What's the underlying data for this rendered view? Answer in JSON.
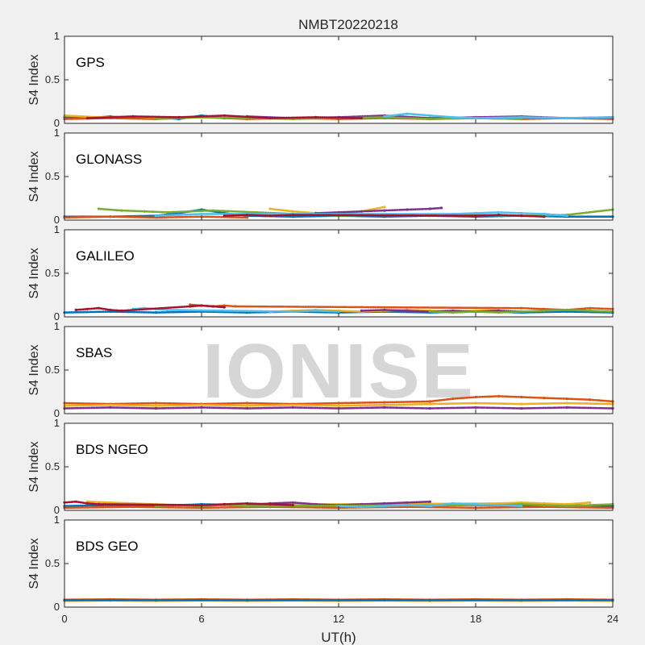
{
  "chart_data": {
    "type": "scatter",
    "title": "NMBT20220218",
    "xlabel": "UT(h)",
    "ylabel": "S4 Index",
    "xlim": [
      0,
      24
    ],
    "ylim": [
      0,
      1
    ],
    "xticks": [
      0,
      6,
      12,
      18,
      24
    ],
    "yticks": [
      0,
      0.5,
      1
    ],
    "x_tick_labels": [
      "0",
      "6",
      "12",
      "18",
      "24"
    ],
    "y_tick_labels": [
      "0",
      "0.5",
      "1"
    ],
    "grid": false,
    "watermark": "IONISE",
    "series_colors": [
      "#0072bd",
      "#d95319",
      "#edb120",
      "#7e2f8e",
      "#77ac30",
      "#4dbeee",
      "#a2142f"
    ],
    "panels": [
      {
        "system": "GPS",
        "segments": [
          {
            "color": "#0072bd",
            "x": [
              0,
              1,
              2,
              3,
              4,
              5,
              6,
              7,
              8
            ],
            "y": [
              0.07,
              0.06,
              0.08,
              0.06,
              0.07,
              0.05,
              0.09,
              0.06,
              0.07
            ]
          },
          {
            "color": "#d95319",
            "x": [
              0,
              2,
              4,
              6,
              8,
              10,
              12,
              14,
              16,
              18,
              20,
              22,
              24
            ],
            "y": [
              0.05,
              0.06,
              0.05,
              0.07,
              0.05,
              0.06,
              0.05,
              0.06,
              0.05,
              0.06,
              0.05,
              0.06,
              0.05
            ]
          },
          {
            "color": "#edb120",
            "x": [
              0,
              1.5,
              3,
              4.5,
              6
            ],
            "y": [
              0.09,
              0.07,
              0.08,
              0.06,
              0.07
            ]
          },
          {
            "color": "#7e2f8e",
            "x": [
              8,
              10,
              12,
              14,
              16,
              18,
              20,
              22,
              24
            ],
            "y": [
              0.08,
              0.06,
              0.07,
              0.09,
              0.06,
              0.07,
              0.08,
              0.06,
              0.07
            ]
          },
          {
            "color": "#77ac30",
            "x": [
              4,
              6,
              8,
              10,
              12,
              14,
              16,
              18,
              20
            ],
            "y": [
              0.05,
              0.07,
              0.06,
              0.05,
              0.06,
              0.07,
              0.05,
              0.06,
              0.05
            ]
          },
          {
            "color": "#4dbeee",
            "x": [
              14,
              15,
              16,
              17,
              18,
              20,
              22,
              24
            ],
            "y": [
              0.08,
              0.11,
              0.09,
              0.07,
              0.06,
              0.07,
              0.06,
              0.07
            ]
          },
          {
            "color": "#a2142f",
            "x": [
              1,
              3,
              5,
              7,
              9,
              11,
              13
            ],
            "y": [
              0.06,
              0.08,
              0.07,
              0.09,
              0.06,
              0.07,
              0.06
            ]
          }
        ]
      },
      {
        "system": "GLONASS",
        "segments": [
          {
            "color": "#0072bd",
            "x": [
              0,
              2,
              4,
              5,
              6,
              7,
              8,
              10,
              12,
              14,
              16,
              18,
              20,
              22,
              24
            ],
            "y": [
              0.04,
              0.04,
              0.05,
              0.08,
              0.12,
              0.08,
              0.05,
              0.04,
              0.05,
              0.04,
              0.05,
              0.04,
              0.05,
              0.04,
              0.04
            ]
          },
          {
            "color": "#d95319",
            "x": [
              0,
              2,
              4,
              6,
              8
            ],
            "y": [
              0.03,
              0.04,
              0.03,
              0.04,
              0.03
            ]
          },
          {
            "color": "#edb120",
            "x": [
              9,
              10,
              11,
              12,
              13,
              14
            ],
            "y": [
              0.13,
              0.1,
              0.08,
              0.06,
              0.1,
              0.15
            ]
          },
          {
            "color": "#7e2f8e",
            "x": [
              11,
              12,
              13,
              14,
              15,
              16,
              16.5
            ],
            "y": [
              0.08,
              0.09,
              0.1,
              0.11,
              0.12,
              0.13,
              0.14
            ]
          },
          {
            "color": "#77ac30",
            "x": [
              1.5,
              2.5,
              3.5,
              4.5,
              5.5,
              6.5,
              12,
              14,
              16,
              18,
              20,
              22,
              24
            ],
            "y": [
              0.13,
              0.11,
              0.1,
              0.09,
              0.1,
              0.11,
              0.05,
              0.06,
              0.05,
              0.06,
              0.05,
              0.06,
              0.12
            ]
          },
          {
            "color": "#4dbeee",
            "x": [
              4,
              5,
              6,
              17,
              18,
              19,
              20,
              21,
              22
            ],
            "y": [
              0.05,
              0.06,
              0.07,
              0.07,
              0.08,
              0.09,
              0.08,
              0.07,
              0.05
            ]
          },
          {
            "color": "#a2142f",
            "x": [
              7,
              8,
              9,
              10,
              18,
              19,
              20,
              21
            ],
            "y": [
              0.05,
              0.06,
              0.05,
              0.06,
              0.05,
              0.06,
              0.05,
              0.04
            ]
          }
        ]
      },
      {
        "system": "GALILEO",
        "segments": [
          {
            "color": "#0072bd",
            "x": [
              0,
              2,
              4,
              6,
              8,
              10,
              12,
              14,
              16,
              18,
              20,
              22,
              24
            ],
            "y": [
              0.05,
              0.06,
              0.05,
              0.06,
              0.05,
              0.06,
              0.05,
              0.06,
              0.05,
              0.06,
              0.05,
              0.06,
              0.05
            ]
          },
          {
            "color": "#d95319",
            "x": [
              5.5,
              6,
              6.5,
              7,
              7.5,
              20,
              21,
              22,
              23,
              24
            ],
            "y": [
              0.14,
              0.13,
              0.12,
              0.13,
              0.12,
              0.1,
              0.09,
              0.08,
              0.1,
              0.09
            ]
          },
          {
            "color": "#edb120",
            "x": [
              9,
              10,
              11,
              12,
              13,
              14,
              15,
              16,
              17,
              18,
              19
            ],
            "y": [
              0.06,
              0.07,
              0.08,
              0.07,
              0.06,
              0.07,
              0.08,
              0.07,
              0.06,
              0.07,
              0.08
            ]
          },
          {
            "color": "#7e2f8e",
            "x": [
              13,
              14,
              15,
              16,
              17,
              18,
              19,
              20
            ],
            "y": [
              0.07,
              0.08,
              0.07,
              0.06,
              0.07,
              0.06,
              0.07,
              0.06
            ]
          },
          {
            "color": "#77ac30",
            "x": [
              16,
              17,
              18,
              19,
              20,
              21,
              22,
              23,
              24
            ],
            "y": [
              0.06,
              0.05,
              0.06,
              0.05,
              0.06,
              0.07,
              0.08,
              0.07,
              0.06
            ]
          },
          {
            "color": "#4dbeee",
            "x": [
              3,
              3.5,
              4,
              4.5,
              10,
              11,
              12
            ],
            "y": [
              0.09,
              0.1,
              0.09,
              0.08,
              0.06,
              0.07,
              0.06
            ]
          },
          {
            "color": "#a2142f",
            "x": [
              0.5,
              1,
              1.5,
              2,
              2.5,
              5.5,
              6,
              6.5,
              7
            ],
            "y": [
              0.08,
              0.09,
              0.1,
              0.08,
              0.07,
              0.12,
              0.13,
              0.12,
              0.11
            ]
          }
        ]
      },
      {
        "system": "SBAS",
        "segments": [
          {
            "color": "#d95319",
            "x": [
              0,
              2,
              4,
              6,
              8,
              10,
              12,
              14,
              16,
              17,
              18,
              19,
              20,
              21,
              22,
              23,
              24
            ],
            "y": [
              0.12,
              0.11,
              0.12,
              0.11,
              0.12,
              0.11,
              0.12,
              0.13,
              0.14,
              0.17,
              0.19,
              0.2,
              0.19,
              0.18,
              0.17,
              0.16,
              0.14
            ]
          },
          {
            "color": "#edb120",
            "x": [
              0,
              2,
              4,
              6,
              8,
              10,
              12,
              14,
              16,
              18,
              20,
              22,
              24
            ],
            "y": [
              0.09,
              0.1,
              0.09,
              0.1,
              0.09,
              0.1,
              0.09,
              0.1,
              0.11,
              0.12,
              0.11,
              0.12,
              0.11
            ]
          },
          {
            "color": "#7e2f8e",
            "x": [
              0,
              2,
              4,
              6,
              8,
              10,
              12,
              14,
              16,
              18,
              20,
              22,
              24
            ],
            "y": [
              0.06,
              0.07,
              0.06,
              0.07,
              0.06,
              0.07,
              0.06,
              0.07,
              0.06,
              0.07,
              0.06,
              0.07,
              0.06
            ]
          }
        ]
      },
      {
        "system": "BDS NGEO",
        "segments": [
          {
            "color": "#0072bd",
            "x": [
              0,
              2,
              4,
              6,
              8,
              10,
              12,
              14,
              16,
              18,
              20,
              22,
              24
            ],
            "y": [
              0.05,
              0.06,
              0.05,
              0.07,
              0.06,
              0.05,
              0.06,
              0.05,
              0.07,
              0.06,
              0.05,
              0.06,
              0.05
            ]
          },
          {
            "color": "#d95319",
            "x": [
              0,
              3,
              6,
              9,
              12,
              15,
              18,
              21,
              24
            ],
            "y": [
              0.03,
              0.04,
              0.03,
              0.04,
              0.03,
              0.04,
              0.03,
              0.04,
              0.03
            ]
          },
          {
            "color": "#edb120",
            "x": [
              1,
              2,
              3,
              4,
              5,
              19,
              20,
              21,
              22,
              23
            ],
            "y": [
              0.1,
              0.09,
              0.08,
              0.07,
              0.06,
              0.08,
              0.09,
              0.08,
              0.07,
              0.09
            ]
          },
          {
            "color": "#7e2f8e",
            "x": [
              8,
              9,
              10,
              11,
              12,
              13,
              14,
              15,
              16
            ],
            "y": [
              0.06,
              0.08,
              0.09,
              0.07,
              0.06,
              0.07,
              0.08,
              0.09,
              0.1
            ]
          },
          {
            "color": "#77ac30",
            "x": [
              4,
              5,
              6,
              7,
              8,
              19,
              20,
              21,
              22,
              23,
              24
            ],
            "y": [
              0.05,
              0.06,
              0.05,
              0.06,
              0.05,
              0.06,
              0.07,
              0.06,
              0.05,
              0.06,
              0.07
            ]
          },
          {
            "color": "#4dbeee",
            "x": [
              12,
              13,
              14,
              15,
              16,
              17,
              18,
              19,
              20
            ],
            "y": [
              0.05,
              0.04,
              0.05,
              0.06,
              0.05,
              0.08,
              0.07,
              0.06,
              0.05
            ]
          },
          {
            "color": "#a2142f",
            "x": [
              0,
              0.5,
              1,
              1.5,
              6,
              7,
              8,
              9,
              10
            ],
            "y": [
              0.09,
              0.1,
              0.08,
              0.07,
              0.06,
              0.07,
              0.08,
              0.07,
              0.06
            ]
          }
        ]
      },
      {
        "system": "BDS GEO",
        "segments": [
          {
            "color": "#d95319",
            "x": [
              0,
              2,
              4,
              6,
              8,
              10,
              12,
              14,
              16,
              18,
              20,
              22,
              24
            ],
            "y": [
              0.085,
              0.09,
              0.085,
              0.09,
              0.085,
              0.09,
              0.085,
              0.09,
              0.085,
              0.09,
              0.085,
              0.09,
              0.085
            ]
          },
          {
            "color": "#edb120",
            "x": [
              0,
              2,
              4,
              6,
              8,
              10,
              12,
              14,
              16,
              18,
              20,
              22,
              24
            ],
            "y": [
              0.07,
              0.075,
              0.07,
              0.075,
              0.07,
              0.075,
              0.07,
              0.075,
              0.07,
              0.075,
              0.07,
              0.075,
              0.07
            ]
          },
          {
            "color": "#0072bd",
            "x": [
              0,
              4,
              8,
              12,
              16,
              20,
              24
            ],
            "y": [
              0.08,
              0.08,
              0.08,
              0.08,
              0.08,
              0.08,
              0.08
            ]
          }
        ]
      }
    ]
  }
}
